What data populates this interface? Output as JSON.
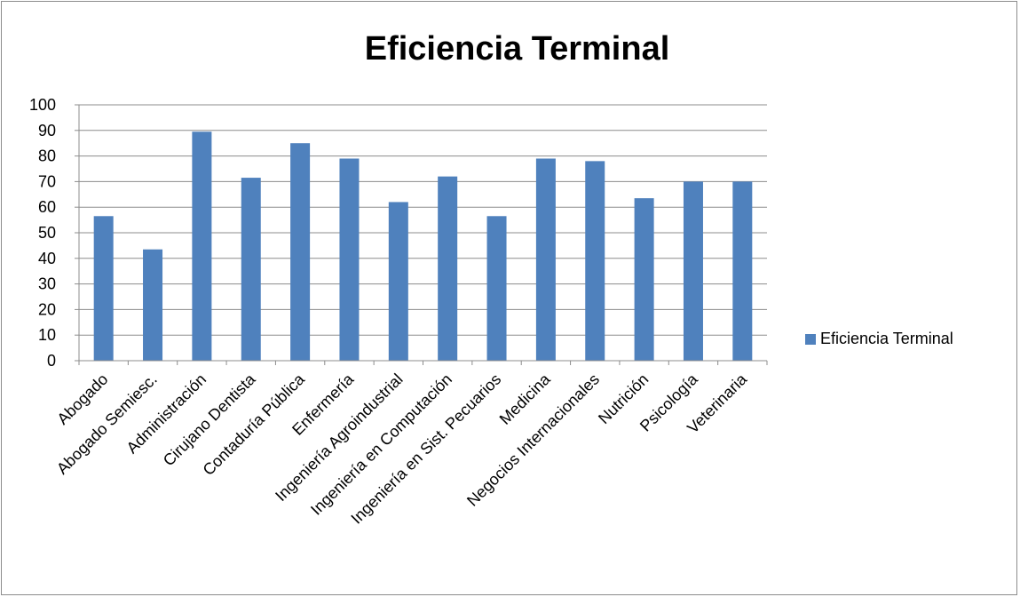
{
  "chart_data": {
    "type": "bar",
    "title": "Eficiencia Terminal",
    "categories": [
      "Abogado",
      "Abogado Semiesc.",
      "Administración",
      "Cirujano Dentista",
      "Contaduría Pública",
      "Enfermería",
      "Ingeniería Agroindustrial",
      "Ingeniería en Computación",
      "Ingeniería en Sist. Pecuarios",
      "Medicina",
      "Negocios Internacionales",
      "Nutrición",
      "Psicología",
      "Veterinaria"
    ],
    "series": [
      {
        "name": "Eficiencia Terminal",
        "values": [
          56.5,
          43.5,
          89.5,
          71.5,
          85,
          79,
          62,
          72,
          56.5,
          79,
          78,
          63.5,
          70,
          70
        ]
      }
    ],
    "y_ticks": [
      "0",
      "10",
      "20",
      "30",
      "40",
      "50",
      "60",
      "70",
      "80",
      "90",
      "100"
    ],
    "ylim": [
      0,
      100
    ],
    "grid": true,
    "legend_position": "right",
    "bar_color": "#4f81bd",
    "grid_color": "#8c8c8c"
  }
}
